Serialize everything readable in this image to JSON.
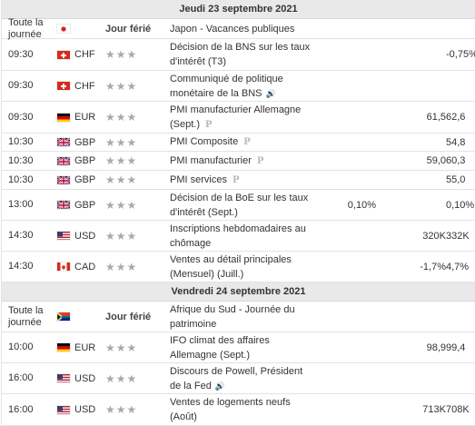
{
  "days": [
    {
      "header": "Jeudi 23 septembre 2021",
      "events": [
        {
          "time": "Toute la journée",
          "flag": "JP",
          "currency": "",
          "holiday": "Jour férié",
          "event": [
            "Japon - Vacances publiques"
          ],
          "actual": "",
          "forecast": "",
          "previous": "",
          "sound": false,
          "badge": false
        },
        {
          "time": "09:30",
          "flag": "CH",
          "currency": "CHF",
          "stars": "★★★",
          "event": [
            "Décision de la BNS sur les taux",
            "d'intérêt (T3)"
          ],
          "actual": "",
          "forecast": "",
          "previous": "-0,75%",
          "sound": false,
          "badge": false
        },
        {
          "time": "09:30",
          "flag": "CH",
          "currency": "CHF",
          "stars": "★★★",
          "event": [
            "Communiqué de politique",
            "monétaire de la BNS"
          ],
          "actual": "",
          "forecast": "",
          "previous": "",
          "sound": true,
          "badge": false
        },
        {
          "time": "09:30",
          "flag": "DE",
          "currency": "EUR",
          "stars": "★★★",
          "event": [
            "PMI manufacturier Allemagne",
            "(Sept.)"
          ],
          "actual": "",
          "forecast": "61,5",
          "previous": "62,6",
          "sound": false,
          "badge": true
        },
        {
          "time": "10:30",
          "flag": "GB",
          "currency": "GBP",
          "stars": "★★★",
          "event": [
            "PMI Composite"
          ],
          "actual": "",
          "forecast": "",
          "previous": "54,8",
          "sound": false,
          "badge": true
        },
        {
          "time": "10:30",
          "flag": "GB",
          "currency": "GBP",
          "stars": "★★★",
          "event": [
            "PMI manufacturier"
          ],
          "actual": "",
          "forecast": "59,0",
          "previous": "60,3",
          "sound": false,
          "badge": true
        },
        {
          "time": "10:30",
          "flag": "GB",
          "currency": "GBP",
          "stars": "★★★",
          "event": [
            "PMI services"
          ],
          "actual": "",
          "forecast": "",
          "previous": "55,0",
          "sound": false,
          "badge": true
        },
        {
          "time": "13:00",
          "flag": "GB",
          "currency": "GBP",
          "stars": "★★★",
          "event": [
            "Décision de la BoE sur les taux",
            "d'intérêt (Sept.)"
          ],
          "actual": "0,10%",
          "forecast": "",
          "previous": "0,10%",
          "sound": false,
          "badge": false
        },
        {
          "time": "14:30",
          "flag": "US",
          "currency": "USD",
          "stars": "★★★",
          "event": [
            "Inscriptions hebdomadaires au",
            "chômage"
          ],
          "actual": "",
          "forecast": "320K",
          "previous": "332K",
          "sound": false,
          "badge": false
        },
        {
          "time": "14:30",
          "flag": "CA",
          "currency": "CAD",
          "stars": "★★★",
          "event": [
            "Ventes au détail principales",
            "(Mensuel) (Juill.)"
          ],
          "actual": "",
          "forecast": "-1,7%",
          "previous": "4,7%",
          "sound": false,
          "badge": false
        }
      ]
    },
    {
      "header": "Vendredi 24 septembre 2021",
      "events": [
        {
          "time": "Toute la journée",
          "flag": "ZA",
          "currency": "",
          "holiday": "Jour férié",
          "event": [
            "Afrique du Sud - Journée du patrimoine"
          ],
          "actual": "",
          "forecast": "",
          "previous": "",
          "sound": false,
          "badge": false
        },
        {
          "time": "10:00",
          "flag": "DE",
          "currency": "EUR",
          "stars": "★★★",
          "event": [
            "IFO climat des affaires",
            "Allemagne (Sept.)"
          ],
          "actual": "",
          "forecast": "98,9",
          "previous": "99,4",
          "sound": false,
          "badge": false
        },
        {
          "time": "16:00",
          "flag": "US",
          "currency": "USD",
          "stars": "★★★",
          "event": [
            "Discours de Powell, Président",
            "de la Fed"
          ],
          "actual": "",
          "forecast": "",
          "previous": "",
          "sound": true,
          "badge": false
        },
        {
          "time": "16:00",
          "flag": "US",
          "currency": "USD",
          "stars": "★★★",
          "event": [
            "Ventes de logements neufs",
            "(Août)"
          ],
          "actual": "",
          "forecast": "713K",
          "previous": "708K",
          "sound": false,
          "badge": false
        }
      ]
    }
  ],
  "icons": {
    "sound": "speaker-icon",
    "preliminary": "p-badge-icon",
    "importance": "star-icon"
  },
  "colors": {
    "header_bg": "#e9e9e9",
    "border": "#e3e3e3",
    "star": "#a9a9a9"
  }
}
